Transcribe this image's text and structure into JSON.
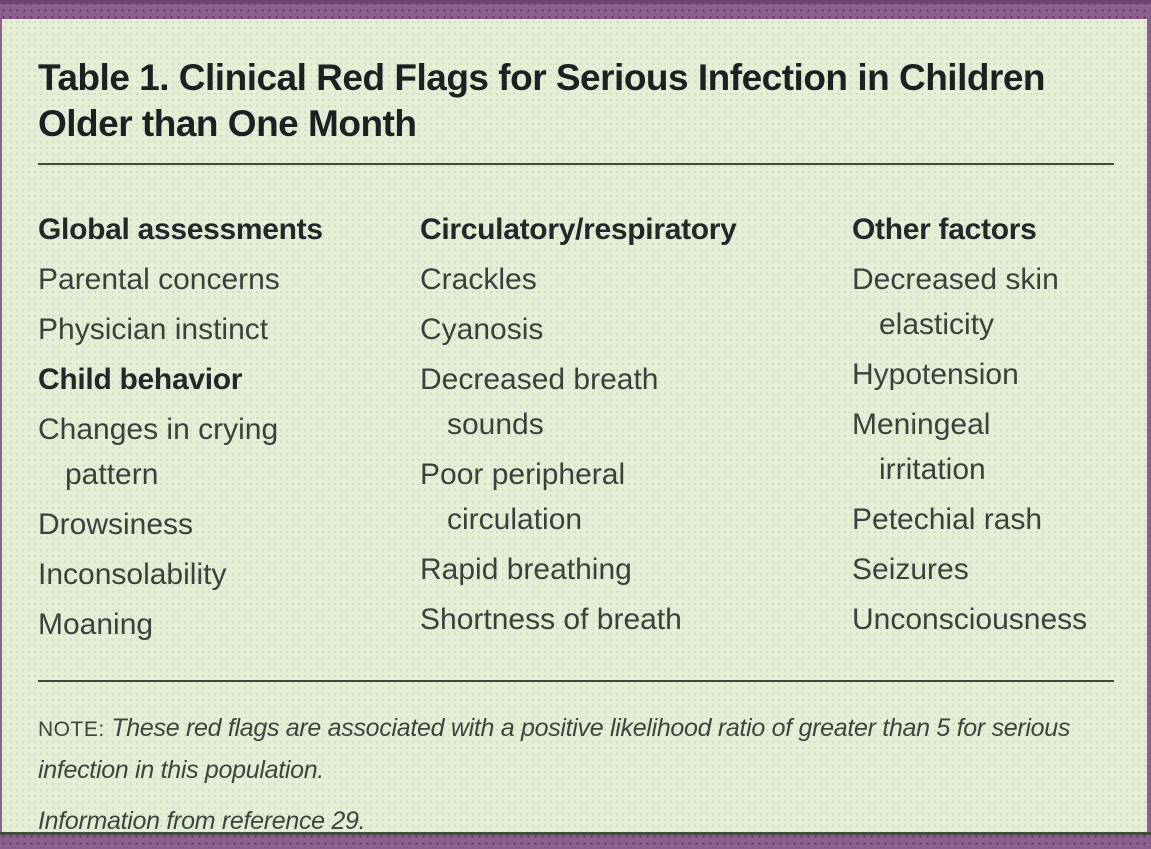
{
  "colors": {
    "accent_purple": "#8d5f8f",
    "panel_green": "#e6eed8",
    "rule": "#41463c",
    "title_text": "#1d1f22",
    "body_text": "#3a403b"
  },
  "table": {
    "title": "Table 1. Clinical Red Flags for Serious Infection in Children Older than One Month",
    "columns": [
      {
        "entries": [
          {
            "style": "header",
            "text": "Global assessments"
          },
          {
            "style": "item",
            "text": "Parental concerns"
          },
          {
            "style": "item",
            "text": "Physician instinct"
          },
          {
            "style": "header",
            "text": "Child behavior"
          },
          {
            "style": "item",
            "text": "Changes in crying pattern"
          },
          {
            "style": "item",
            "text": "Drowsiness"
          },
          {
            "style": "item",
            "text": "Inconsolability"
          },
          {
            "style": "item",
            "text": "Moaning"
          }
        ]
      },
      {
        "entries": [
          {
            "style": "header",
            "text": "Circulatory/respiratory"
          },
          {
            "style": "item",
            "text": "Crackles"
          },
          {
            "style": "item",
            "text": "Cyanosis"
          },
          {
            "style": "item",
            "text": "Decreased breath sounds"
          },
          {
            "style": "item",
            "text": "Poor peripheral circulation"
          },
          {
            "style": "item",
            "text": "Rapid breathing"
          },
          {
            "style": "item",
            "text": "Shortness of breath"
          }
        ]
      },
      {
        "entries": [
          {
            "style": "header",
            "text": "Other factors"
          },
          {
            "style": "item",
            "text": "Decreased skin elasticity"
          },
          {
            "style": "item",
            "text": "Hypotension"
          },
          {
            "style": "item",
            "text": "Meningeal irritation"
          },
          {
            "style": "item",
            "text": "Petechial rash"
          },
          {
            "style": "item",
            "text": "Seizures"
          },
          {
            "style": "item",
            "text": "Unconsciousness"
          }
        ]
      }
    ],
    "note": {
      "label": "NOTE:",
      "text": "These red flags are associated with a positive likelihood ratio of greater than 5 for serious infection in this population."
    },
    "source": "Information from reference 29."
  }
}
